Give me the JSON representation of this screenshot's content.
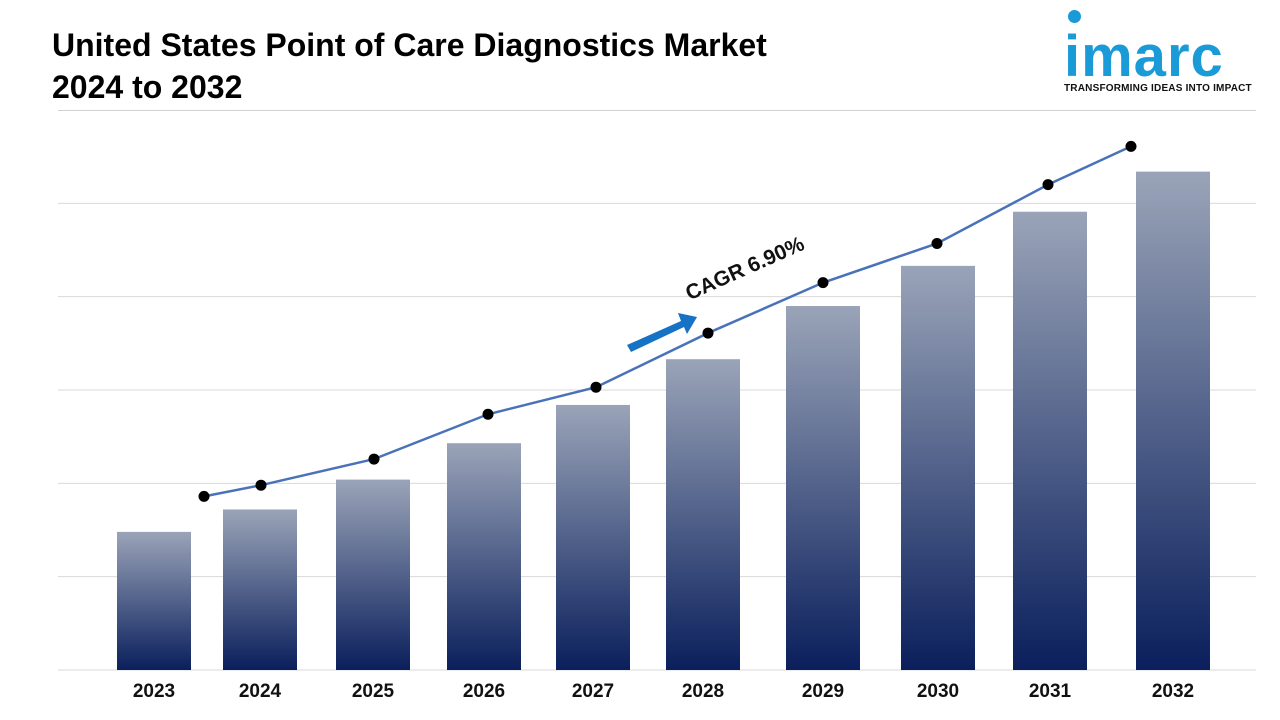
{
  "title_line1": "United States Point of Care Diagnostics Market",
  "title_line2": "2024 to 2032",
  "logo": {
    "text": "imarc",
    "tagline": "TRANSFORMING IDEAS INTO IMPACT",
    "color": "#1a9bd7"
  },
  "colors": {
    "bar_top": "#9aa4b8",
    "bar_bottom": "#0a1f5c",
    "line": "#4a72b8",
    "point": "#000000",
    "arrow": "#1672c4",
    "grid": "#d9d9d9"
  },
  "chart_data": {
    "type": "bar",
    "categories": [
      "2023",
      "2024",
      "2025",
      "2026",
      "2027",
      "2028",
      "2029",
      "2030",
      "2031",
      "2032"
    ],
    "values": [
      148,
      172,
      204,
      243,
      284,
      333,
      390,
      433,
      491,
      534
    ],
    "trend_line": [
      186,
      198,
      226,
      274,
      303,
      361,
      415,
      457,
      520,
      561
    ],
    "ylim": [
      0,
      600
    ],
    "grid": true,
    "annotation": "CAGR 6.90%",
    "xlabel": "",
    "ylabel": ""
  }
}
